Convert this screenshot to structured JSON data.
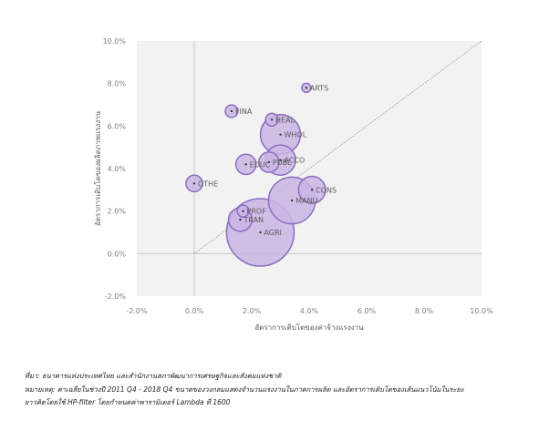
{
  "chart_data": {
    "type": "scatter",
    "xlabel": "อัตราการเติบโตของค่าจ้างแรงงาน",
    "ylabel": "อัตราการเติบโตของผลิตภาพแรงงาน",
    "xlim": [
      -2,
      10
    ],
    "ylim": [
      -2,
      10
    ],
    "x_ticks": [
      "-2.0%",
      "0.0%",
      "2.0%",
      "4.0%",
      "6.0%",
      "8.0%",
      "10.0%"
    ],
    "y_ticks": [
      "-2.0%",
      "0.0%",
      "2.0%",
      "4.0%",
      "6.0%",
      "8.0%",
      "10.0%"
    ],
    "reference_line": "y = x",
    "grid": false,
    "colors": {
      "bubble_fill": "#c9b6e4",
      "bubble_edge": "#8e6cc0",
      "plot_bg": "#f2f2f2",
      "axis_zero": "#c0c0c0",
      "diagonal": "#7f7f7f"
    },
    "points": [
      {
        "label": "ARTS",
        "x": 3.9,
        "y": 7.8,
        "size": 0.12
      },
      {
        "label": "FINA",
        "x": 1.3,
        "y": 6.7,
        "size": 0.35
      },
      {
        "label": "HEAL",
        "x": 2.7,
        "y": 6.3,
        "size": 0.35
      },
      {
        "label": "WHOL",
        "x": 3.0,
        "y": 5.6,
        "size": 3.5
      },
      {
        "label": "ACCO",
        "x": 3.0,
        "y": 4.4,
        "size": 2.0
      },
      {
        "label": "PUBL",
        "x": 2.6,
        "y": 4.3,
        "size": 0.9
      },
      {
        "label": "EDUC",
        "x": 1.8,
        "y": 4.2,
        "size": 0.9
      },
      {
        "label": "OTHE",
        "x": 0.0,
        "y": 3.3,
        "size": 0.6
      },
      {
        "label": "CONS",
        "x": 4.1,
        "y": 3.0,
        "size": 1.6
      },
      {
        "label": "MANU",
        "x": 3.4,
        "y": 2.5,
        "size": 4.8
      },
      {
        "label": "PROF",
        "x": 1.7,
        "y": 2.0,
        "size": 0.3
      },
      {
        "label": "TRAN",
        "x": 1.6,
        "y": 1.6,
        "size": 1.2
      },
      {
        "label": "AGRI",
        "x": 2.3,
        "y": 1.0,
        "size": 10.0
      }
    ]
  },
  "notes": {
    "source": "ที่มา: ธนาคารแห่งประเทศไทย และสำนักงานสภาพัฒนาการเศรษฐกิจและสังคมแห่งชาติ",
    "remark_line1": "หมายเหตุ: ค่าเฉลี่ยในช่วงปี 2011 Q4 - 2018 Q4 ขนาดของวงกลมแสดงจำนวนแรงงานในภาคการผลิต และอัตราการเติบโตของเส้นแนวโน้มในระยะ",
    "remark_line2": "ยาวคิดโดยใช้ HP-filter โดยกำหนดค่าพารามิเตอร์ Lambda ที่ 1600"
  }
}
